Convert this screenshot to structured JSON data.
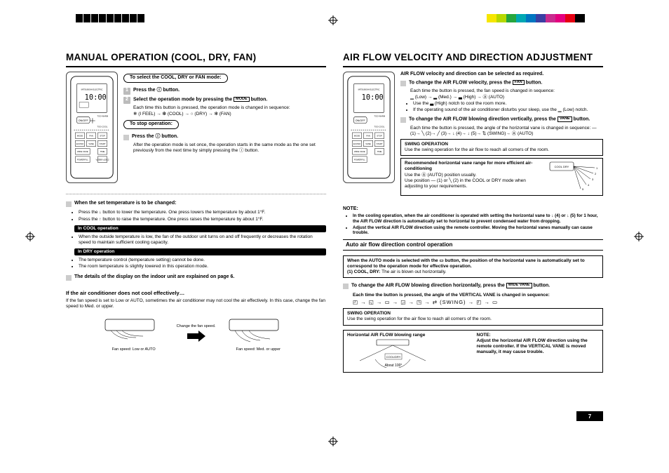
{
  "registration": {
    "color_swatches": [
      "#f6e600",
      "#b6d800",
      "#26a63e",
      "#00a7b3",
      "#0075c1",
      "#3b3fa3",
      "#c82b8e",
      "#e4007f",
      "#e50012",
      "#000000"
    ]
  },
  "left": {
    "headline": "MANUAL OPERATION (COOL, DRY, FAN)",
    "pill_select": "To select the COOL, DRY or FAN mode:",
    "step1": "Press the ⓘ button.",
    "step2_a": "Select the operation mode by pressing the ",
    "step2_btn": "MODE",
    "step2_b": " button.",
    "step2_body": "Each time this button is pressed, the operation mode is changed in sequence:",
    "step2_seq": "❄ (I FEEL) → ❆ (COOL) → ○ (DRY) → ✻ (FAN)",
    "pill_stop": "To stop operation:",
    "stop_line": "Press the ⓘ button.",
    "stop_body": "After the operation mode is set once, the operation starts in the same mode as the one set previously from the next time by simply pressing the ⓘ button.",
    "temp_hdr": "When the set temperature is to be changed:",
    "temp_b1": "Press the ↓ button to lower the temperature. One press lowers the temperature by about 1°F.",
    "temp_b2": "Press the ↑ button to raise the temperature. One press raises the temperature by about 1°F.",
    "cool_pill": "In COOL operation",
    "cool_b1": "When the outside temperature is low, the fan of the outdoor unit turns on and off frequently or decreases the rotation speed to maintain sufficient cooling capacity.",
    "dry_pill": "In DRY operation",
    "dry_b1": "The temperature control (temperature setting) cannot be done.",
    "dry_b2": "The room temperature is slightly lowered in this operation mode.",
    "display_line": "The details of the display on the indoor unit are explained on page 6.",
    "noeff_hdr": "If the air conditioner does not cool effectively…",
    "noeff_body": "If the fan speed is set to Low or AUTO, sometimes the air conditioner may not cool the air effectively. In this case, change the fan speed to Med. or upper.",
    "illus_change": "Change the fan speed.",
    "illus_low": "Fan speed: Low or AUTO",
    "illus_med": "Fan speed: Med. or upper"
  },
  "right": {
    "headline": "AIR FLOW VELOCITY AND DIRECTION ADJUSTMENT",
    "intro": "AIR FLOW velocity and direction can be selected as required.",
    "vel_a": "To change the AIR FLOW velocity, press the ",
    "vel_btn": "FAN",
    "vel_b": " button.",
    "vel_body1": "Each time the button is pressed, the fan speed is changed in sequence:",
    "vel_seq": "▁ (Low) → ▂ (Med.) → ▃ (High) → Ⓐ (AUTO)",
    "vel_b1": "Use the ▃ (High) notch to cool the room more.",
    "vel_b2": "If the operating sound of the air conditioner disturbs your sleep, use the ▁ (Low) notch.",
    "vert_a": "To change the AIR FLOW blowing direction vertically, press the ",
    "vert_btn": "VANE",
    "vert_b": " button.",
    "vert_body": "Each time the button is pressed, the angle of the horizontal vane is changed in sequence: ― (1)→ ╲ (2)→ ╱ (3)→ ↓ (4)→ ↓ (5)→ ⇅ (SWING)→ Ⓐ (AUTO)",
    "swing1_hd": "SWING OPERATION",
    "swing1_body": "Use the swing operation for the air flow to reach all corners of the room.",
    "rec_hd": "Recommended horizontal vane range for more efficient air-conditioning",
    "rec_l1": "Use the Ⓐ (AUTO) position usually.",
    "rec_l2": "Use position ― (1) or ╲ (2) in the COOL or DRY mode when adjusting to your requirements.",
    "note_hdr": "NOTE:",
    "note1": "In the cooling operation, when the air conditioner is operated with setting the horizontal vane to ↓ (4) or ↓ (5) for 1 hour, the AIR FLOW direction is automatically set to horizontal to prevent condensed water from dropping.",
    "note2": "Adjust the vertical AIR FLOW direction using the remote controller. Moving the horizontal vanes manually can cause trouble.",
    "auto_bar": "Auto air flow direction control operation",
    "auto_box1": "When the AUTO mode is selected with the ▭ button, the position of the horizontal vane is automatically set to correspond to the operation mode for effective operation.",
    "auto_box2_a": "(1) COOL, DRY: ",
    "auto_box2_b": "The air is blown out horizontally.",
    "horz_a": "To change the AIR FLOW blowing direction horizontally, press the ",
    "horz_btn": "WIDE VANE",
    "horz_b": " button.",
    "horz_body": "Each time the button is pressed, the angle of the VERTICAL VANE is changed in sequence:",
    "horz_seq": "◰ → ◱ → ▭ → ◲ → ◳ → ⇄ (SWING) → ◰ → ▭",
    "swing2_hd": "SWING OPERATION",
    "swing2_body": "Use the swing operation for the air flow to reach all corners of the room.",
    "hrange_hd": "Horizontal AIR FLOW blowing range",
    "hrange_deg": "About 100°",
    "hrange_lbl": "COOL/DRY",
    "hnote_hd": "NOTE:",
    "hnote_body": "Adjust the horizontal AIR FLOW direction using the remote controller. If the VERTICAL VANE is moved manually, it may cause trouble."
  },
  "page_number": "7",
  "colors": {
    "accent_sq": "#cccccc",
    "numbox": "#bbbbbb"
  }
}
